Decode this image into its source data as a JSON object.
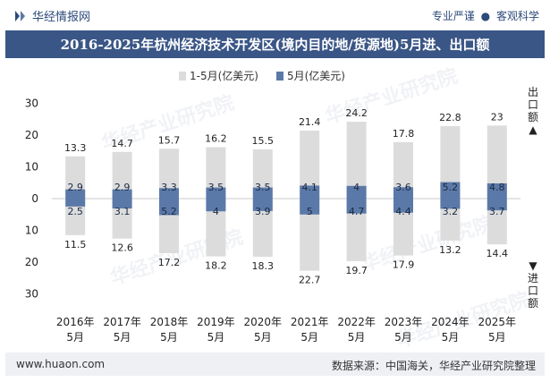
{
  "header": {
    "brand": "华经情报网",
    "tagline_left": "专业严谨",
    "tagline_sep": "●",
    "tagline_right": "客观科学",
    "title": "2016-2025年杭州经济技术开发区(境内目的地/货源地)5月进、出口额"
  },
  "side_labels": {
    "export": "出口额▲",
    "import": "▼进口额"
  },
  "footer": {
    "url": "www.huaon.com",
    "source": "数据来源：中国海关，华经产业研究院整理"
  },
  "watermark": "华经产业研究院",
  "colors": {
    "cumulative": "#dcdcdc",
    "monthly": "#5b79a8",
    "title_bg": "#3a5686",
    "axis_text": "#222222"
  },
  "chart_data": {
    "type": "bar",
    "title": "2016-2025年杭州经济技术开发区(境内目的地/货源地)5月进、出口额",
    "categories": [
      "2016年\n5月",
      "2017年\n5月",
      "2018年\n5月",
      "2019年\n5月",
      "2020年\n5月",
      "2021年\n5月",
      "2022年\n5月",
      "2023年\n5月",
      "2024年\n5月",
      "2025年\n5月"
    ],
    "legend": [
      "1-5月(亿美元)",
      "5月(亿美元)"
    ],
    "yticks": [
      30,
      20,
      10,
      0,
      10,
      20,
      30
    ],
    "ylim": [
      -30,
      30
    ],
    "series": [
      {
        "name": "1-5月(亿美元)",
        "export": [
          13.3,
          14.7,
          15.7,
          16.2,
          15.5,
          21.4,
          24.2,
          17.8,
          22.8,
          23
        ],
        "import": [
          11.5,
          12.6,
          17.2,
          18.2,
          18.3,
          22.7,
          19.7,
          17.9,
          13.2,
          14.4
        ]
      },
      {
        "name": "5月(亿美元)",
        "export": [
          2.9,
          2.9,
          3.3,
          3.5,
          3.5,
          4.1,
          4,
          3.6,
          5.2,
          4.8
        ],
        "import": [
          2.5,
          3.1,
          5.2,
          4,
          3.9,
          5,
          4.7,
          4.4,
          3.2,
          3.7
        ]
      }
    ],
    "export_labels": [
      "13.3",
      "14.7",
      "15.7",
      "16.2",
      "15.5",
      "21.4",
      "24.2",
      "17.8",
      "22.8",
      "23"
    ],
    "import_labels": [
      "11.5",
      "12.6",
      "17.2",
      "18.2",
      "18.3",
      "22.7",
      "19.7",
      "17.9",
      "13.2",
      "14.4"
    ],
    "monthly_export_labels": [
      "2.9",
      "2.9",
      "3.3",
      "3.5",
      "3.5",
      "4.1",
      "4",
      "3.6",
      "5.2",
      "4.8"
    ],
    "monthly_import_labels": [
      "2.5",
      "3.1",
      "5.2",
      "4",
      "3.9",
      "5",
      "4.7",
      "4.4",
      "3.2",
      "3.7"
    ]
  }
}
